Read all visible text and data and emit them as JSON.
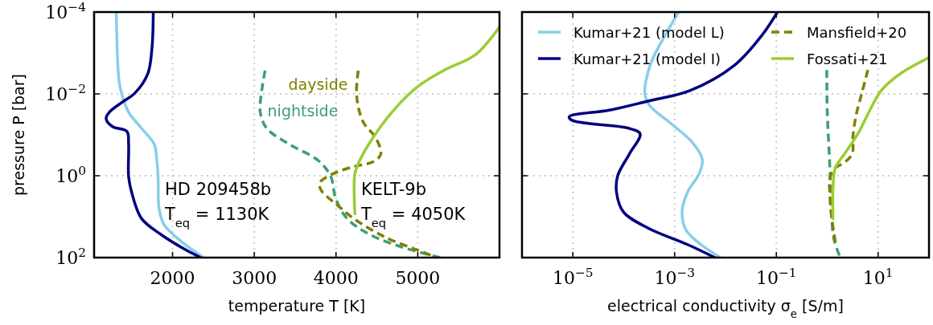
{
  "chart_data": [
    {
      "type": "line",
      "xlabel": "temperature T [K]",
      "ylabel": "pressure P [bar]",
      "log": "y",
      "grid": true,
      "legend": false,
      "xlim": [
        1040,
        6000
      ],
      "xticks": [
        2000,
        3000,
        4000,
        5000
      ],
      "ylim": [
        100,
        0.0001
      ],
      "yticks": [
        {
          "value": 0.0001,
          "label": "10$^{−4}$"
        },
        {
          "value": 0.01,
          "label": "10$^{−2}$"
        },
        {
          "value": 1,
          "label": "10$^{0}$"
        },
        {
          "value": 100,
          "label": "10$^{2}$"
        }
      ],
      "annotations": [
        "HD 209458b",
        "T$_{eq}$ = 1130K",
        "KELT-9b",
        "T$_{eq}$ = 4050K"
      ],
      "series": [
        {
          "color": "#87ceeb",
          "x": [
            1312,
            1344,
            1383,
            1462,
            1619,
            1776,
            1807,
            1823,
            1835,
            1894,
            2090,
            2380
          ],
          "values": [
            0.0001,
            0.0046,
            0.011,
            0.028,
            0.069,
            0.17,
            0.42,
            1.05,
            6.3,
            15.5,
            38,
            100
          ]
        },
        {
          "color": "#000080",
          "x": [
            1764,
            1748,
            1697,
            1540,
            1383,
            1226,
            1187,
            1265,
            1442,
            1462,
            1462,
            1501,
            1619,
            1855,
            2169,
            2346
          ],
          "values": [
            0.0001,
            0.00076,
            0.0032,
            0.0095,
            0.016,
            0.028,
            0.04,
            0.063,
            0.083,
            0.17,
            1.05,
            2.6,
            11,
            27,
            66,
            100
          ]
        },
        {
          "name": "nightside",
          "color": "#3c9f73",
          "line_style": "dashed",
          "x": [
            3132,
            3093,
            3073,
            3151,
            3427,
            3780,
            3937,
            3996,
            4134,
            4409,
            4802,
            5274
          ],
          "values": [
            0.0027,
            0.0079,
            0.028,
            0.069,
            0.17,
            0.42,
            1.05,
            3.6,
            11,
            27,
            55,
            100
          ]
        },
        {
          "name": "dayside",
          "color": "#808000",
          "line_style": "dashed",
          "x": [
            4272,
            4252,
            4331,
            4488,
            4547,
            4449,
            4213,
            3937,
            3800,
            3820,
            4016,
            4213,
            4606,
            5000,
            5157
          ],
          "values": [
            0.0027,
            0.011,
            0.048,
            0.12,
            0.3,
            0.46,
            0.6,
            0.95,
            1.5,
            2.3,
            5.2,
            11,
            32,
            66,
            87
          ]
        },
        {
          "color": "#9acd32",
          "x": [
            6000,
            5706,
            5313,
            5000,
            4684,
            4449,
            4291,
            4232,
            4232
          ],
          "values": [
            0.00023,
            0.0011,
            0.0027,
            0.0066,
            0.028,
            0.12,
            0.42,
            0.87,
            9.1
          ]
        }
      ]
    },
    {
      "type": "line",
      "xlabel": "electrical conductivity σ$_{e}$ [S/m]",
      "log": "xy",
      "grid": true,
      "legend": "top",
      "tick_labels": "x",
      "xlim": [
        1e-06,
        100
      ],
      "xticks": [
        {
          "value": 1e-05,
          "label": "10$^{−5}$"
        },
        {
          "value": 0.001,
          "label": "10$^{−3}$"
        },
        {
          "value": 0.1,
          "label": "10$^{−1}$"
        },
        {
          "value": 10,
          "label": "10$^{1}$"
        }
      ],
      "ylim": [
        100,
        0.0001
      ],
      "yticks": [
        {
          "value": 0.0001,
          "label": null
        },
        {
          "value": 0.01,
          "label": null
        },
        {
          "value": 1,
          "label": null
        },
        {
          "value": 100,
          "label": null
        }
      ],
      "series": [
        {
          "name": "Kumar+21 (model L)",
          "color": "#87ceeb",
          "x": [
            0.0012,
            0.00065,
            0.00036,
            0.00027,
            0.00026,
            0.00032,
            0.00083,
            0.0022,
            0.0035,
            0.0031,
            0.0018,
            0.0014,
            0.0017,
            0.0033,
            0.0079
          ],
          "values": [
            0.0001,
            0.00037,
            0.0015,
            0.0051,
            0.01,
            0.019,
            0.052,
            0.15,
            0.4,
            0.85,
            2.5,
            7.6,
            22,
            48,
            100
          ]
        },
        {
          "name": "Kumar+21 (model I)",
          "color": "#000080",
          "x": [
            0.105,
            0.052,
            0.015,
            0.002,
            0.0003,
            5.2e-05,
            8.5e-06,
            9.5e-06,
            0.00013,
            0.00021,
            0.00013,
            7.6e-05,
            7.2e-05,
            9.8e-05,
            0.0003,
            0.0018,
            0.0062
          ],
          "values": [
            0.0001,
            0.00037,
            0.002,
            0.0083,
            0.015,
            0.025,
            0.036,
            0.044,
            0.07,
            0.095,
            0.29,
            1,
            2.5,
            7.6,
            19,
            48,
            100
          ]
        },
        {
          "color": "#3c9f73",
          "line_style": "dashed",
          "x": [
            0.98,
            1,
            1.12,
            1.2,
            1.35,
            1.74
          ],
          "values": [
            0.0026,
            0.025,
            0.54,
            5.5,
            35,
            89
          ]
        },
        {
          "name": "Mansfield+20",
          "color": "#808000",
          "line_style": "dashed",
          "x": [
            6.3,
            4.8,
            3.7,
            3.2,
            3.1,
            2.2,
            1.35,
            1.12,
            1.12,
            1.2,
            1.45
          ],
          "values": [
            0.0026,
            0.0095,
            0.033,
            0.11,
            0.29,
            0.47,
            0.68,
            1.2,
            2.5,
            8.7,
            42
          ]
        },
        {
          "name": "Fossati+21",
          "color": "#9acd32",
          "x": [
            100,
            27.5,
            11.5,
            6.9,
            4.2,
            2.2,
            1.45,
            1.3,
            1.3
          ],
          "values": [
            0.0013,
            0.0032,
            0.0083,
            0.025,
            0.085,
            0.29,
            0.63,
            1.9,
            12
          ]
        }
      ]
    }
  ]
}
